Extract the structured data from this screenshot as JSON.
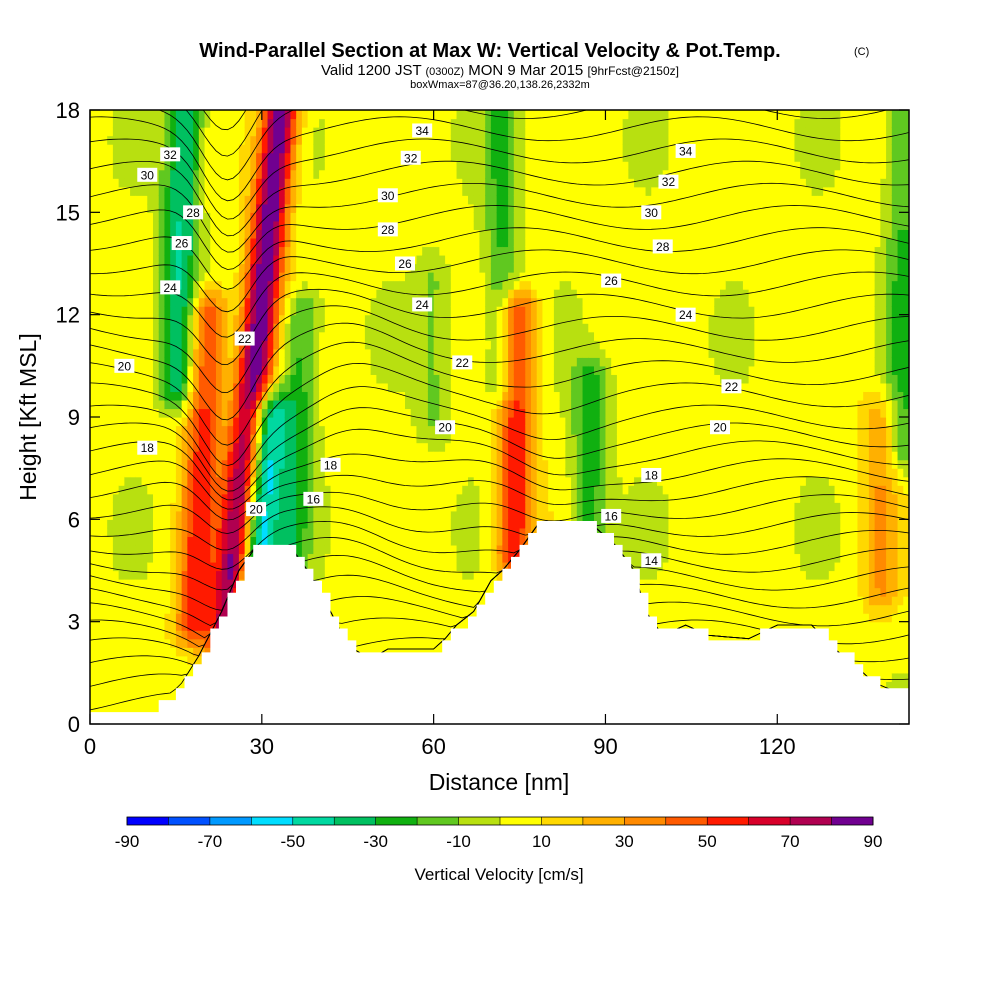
{
  "chart_data": {
    "type": "heatmap",
    "title": "Wind-Parallel Section at Max W: Vertical Velocity & Pot.Temp.",
    "copyright": "(C)",
    "subtitle_a": "Valid 1200 JST",
    "subtitle_utc": "(0300Z)",
    "subtitle_b": "MON 9 Mar 2015",
    "subtitle_fcst": "[9hrFcst@2150z]",
    "subtitle_box": "boxWmax=87@36.20,138.26,2332m",
    "xlabel": "Distance [nm]",
    "ylabel": "Height [Kft MSL]",
    "xlim": [
      0,
      143
    ],
    "ylim": [
      0,
      18
    ],
    "x_ticks": [
      "0",
      "30",
      "60",
      "90",
      "120"
    ],
    "x_tick_values": [
      0,
      30,
      60,
      90,
      120
    ],
    "y_ticks": [
      "0",
      "3",
      "6",
      "9",
      "12",
      "15",
      "18"
    ],
    "y_tick_values": [
      0,
      3,
      6,
      9,
      12,
      15,
      18
    ],
    "colorbar_label": "Vertical Velocity [cm/s]",
    "colorbar_ticks": [
      "-90",
      "-70",
      "-50",
      "-30",
      "-10",
      "10",
      "30",
      "50",
      "70",
      "90"
    ],
    "colorbar_levels": [
      -90,
      -80,
      -70,
      -60,
      -50,
      -40,
      -30,
      -20,
      -10,
      0,
      10,
      20,
      30,
      40,
      50,
      60,
      70,
      80,
      90
    ],
    "colorbar_colors": [
      "#0000ff",
      "#0050ff",
      "#0099ff",
      "#00ddff",
      "#00d8a0",
      "#00c060",
      "#10b010",
      "#60c820",
      "#b8e010",
      "#ffff00",
      "#ffd800",
      "#ffb000",
      "#ff8a00",
      "#ff5a00",
      "#ff1a00",
      "#d8002a",
      "#b00050",
      "#700090"
    ],
    "w_features": [
      {
        "x": 24,
        "y_bottom": 2.5,
        "y_top": 18,
        "w_peak": 87,
        "kind": "updraft",
        "lean": 0.6
      },
      {
        "x": 18,
        "y_bottom": 3,
        "y_top": 12,
        "w_peak": 50,
        "kind": "updraft",
        "lean": 0.3
      },
      {
        "x": 15,
        "y_bottom": 10,
        "y_top": 18,
        "w_peak": -45,
        "kind": "downdraft",
        "lean": 0.2
      },
      {
        "x": 28,
        "y_bottom": 3,
        "y_top": 9,
        "w_peak": -70,
        "kind": "downdraft",
        "lean": 0.5
      },
      {
        "x": 35,
        "y_bottom": 5,
        "y_top": 12,
        "w_peak": -30,
        "kind": "downdraft",
        "lean": 0.3
      },
      {
        "x": 74,
        "y_bottom": 5,
        "y_top": 12,
        "w_peak": 55,
        "kind": "updraft",
        "lean": 0.1
      },
      {
        "x": 72,
        "y_bottom": 10,
        "y_top": 18,
        "w_peak": -25,
        "kind": "downdraft",
        "lean": 0.0
      },
      {
        "x": 87,
        "y_bottom": 5.5,
        "y_top": 10,
        "w_peak": -30,
        "kind": "downdraft",
        "lean": 0.1
      },
      {
        "x": 60,
        "y_bottom": 9,
        "y_top": 13,
        "w_peak": -15,
        "kind": "downdraft",
        "lean": 0.0
      },
      {
        "x": 138,
        "y_bottom": 4,
        "y_top": 9,
        "w_peak": 25,
        "kind": "updraft",
        "lean": 0.0
      },
      {
        "x": 142,
        "y_bottom": 8,
        "y_top": 18,
        "w_peak": -25,
        "kind": "downdraft",
        "lean": 0.0
      }
    ],
    "terrain": [
      [
        0,
        0.3
      ],
      [
        10,
        0.3
      ],
      [
        13,
        0.7
      ],
      [
        16,
        1.2
      ],
      [
        19,
        2.0
      ],
      [
        23,
        3.3
      ],
      [
        26,
        4.5
      ],
      [
        29,
        5.2
      ],
      [
        35,
        5.2
      ],
      [
        38,
        4.5
      ],
      [
        42,
        3.3
      ],
      [
        45,
        2.3
      ],
      [
        49,
        1.9
      ],
      [
        52,
        2.2
      ],
      [
        56,
        2.2
      ],
      [
        60,
        2.2
      ],
      [
        62,
        2.5
      ],
      [
        64,
        2.9
      ],
      [
        67,
        3.3
      ],
      [
        70,
        4.2
      ],
      [
        72,
        4.5
      ],
      [
        75,
        5.1
      ],
      [
        78,
        5.8
      ],
      [
        88,
        5.8
      ],
      [
        92,
        5.2
      ],
      [
        95,
        4.5
      ],
      [
        97,
        3.3
      ],
      [
        100,
        2.6
      ],
      [
        104,
        2.9
      ],
      [
        108,
        2.6
      ],
      [
        115,
        2.5
      ],
      [
        120,
        2.9
      ],
      [
        126,
        2.9
      ],
      [
        130,
        2.2
      ],
      [
        133,
        1.8
      ],
      [
        137,
        1.2
      ],
      [
        140,
        1.0
      ],
      [
        143,
        1.0
      ]
    ],
    "theta_label_values": [
      "14",
      "16",
      "18",
      "20",
      "22",
      "24",
      "26",
      "28",
      "30",
      "32",
      "34"
    ],
    "theta_labels": [
      {
        "text": "32",
        "x": 14,
        "y": 16.7
      },
      {
        "text": "30",
        "x": 10,
        "y": 16.1
      },
      {
        "text": "28",
        "x": 18,
        "y": 15.0
      },
      {
        "text": "26",
        "x": 16,
        "y": 14.1
      },
      {
        "text": "24",
        "x": 14,
        "y": 12.8
      },
      {
        "text": "20",
        "x": 6,
        "y": 10.5
      },
      {
        "text": "18",
        "x": 10,
        "y": 8.1
      },
      {
        "text": "22",
        "x": 27,
        "y": 11.3
      },
      {
        "text": "20",
        "x": 29,
        "y": 6.3
      },
      {
        "text": "18",
        "x": 42,
        "y": 7.6
      },
      {
        "text": "16",
        "x": 39,
        "y": 6.6
      },
      {
        "text": "34",
        "x": 58,
        "y": 17.4
      },
      {
        "text": "32",
        "x": 56,
        "y": 16.6
      },
      {
        "text": "30",
        "x": 52,
        "y": 15.5
      },
      {
        "text": "28",
        "x": 52,
        "y": 14.5
      },
      {
        "text": "26",
        "x": 55,
        "y": 13.5
      },
      {
        "text": "24",
        "x": 58,
        "y": 12.3
      },
      {
        "text": "22",
        "x": 65,
        "y": 10.6
      },
      {
        "text": "20",
        "x": 62,
        "y": 8.7
      },
      {
        "text": "34",
        "x": 104,
        "y": 16.8
      },
      {
        "text": "32",
        "x": 101,
        "y": 15.9
      },
      {
        "text": "30",
        "x": 98,
        "y": 15.0
      },
      {
        "text": "28",
        "x": 100,
        "y": 14.0
      },
      {
        "text": "26",
        "x": 91,
        "y": 13.0
      },
      {
        "text": "24",
        "x": 104,
        "y": 12.0
      },
      {
        "text": "22",
        "x": 112,
        "y": 9.9
      },
      {
        "text": "20",
        "x": 110,
        "y": 8.7
      },
      {
        "text": "18",
        "x": 98,
        "y": 7.3
      },
      {
        "text": "16",
        "x": 91,
        "y": 6.1
      },
      {
        "text": "14",
        "x": 98,
        "y": 4.8
      }
    ]
  }
}
